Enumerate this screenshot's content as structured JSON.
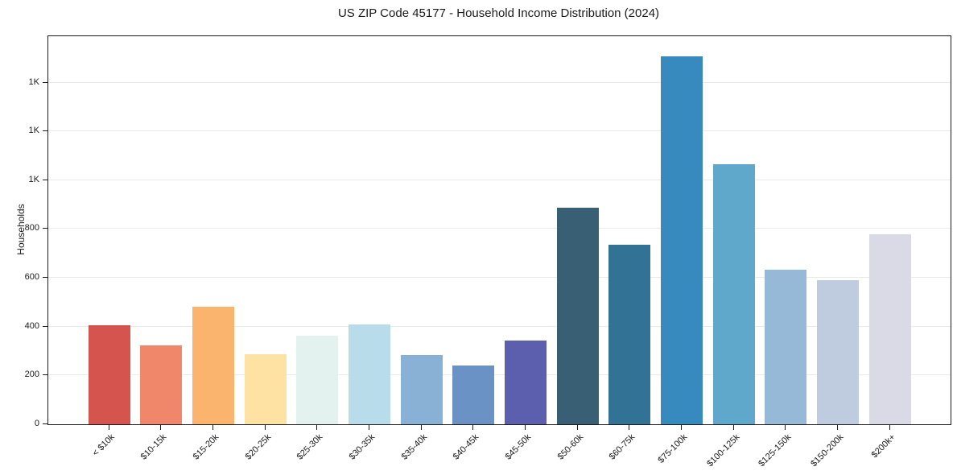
{
  "chart_data": {
    "type": "bar",
    "title": "US ZIP Code 45177 - Household Income Distribution (2024)",
    "xlabel": "",
    "ylabel": "Households",
    "categories": [
      "< $10k",
      "$10-15k",
      "$15-20k",
      "$20-25k",
      "$25-30k",
      "$30-35k",
      "$35-40k",
      "$40-45k",
      "$45-50k",
      "$50-60k",
      "$60-75k",
      "$75-100k",
      "$100-125k",
      "$125-150k",
      "$150-200k",
      "$200k+"
    ],
    "values": [
      405,
      323,
      482,
      287,
      362,
      408,
      284,
      240,
      343,
      888,
      735,
      1508,
      1066,
      632,
      592,
      777
    ],
    "bar_colors": [
      "#d6544e",
      "#f0876a",
      "#fab46e",
      "#fde2a3",
      "#e4f2ef",
      "#b8dcea",
      "#89b1d6",
      "#6b92c4",
      "#5c5fad",
      "#395f74",
      "#327294",
      "#378abd",
      "#5fa7cb",
      "#96b9d8",
      "#bfcce0",
      "#dadae7"
    ],
    "ylim": [
      0,
      1590
    ],
    "yticks": [
      {
        "value": 0,
        "label": "0"
      },
      {
        "value": 200,
        "label": "200"
      },
      {
        "value": 400,
        "label": "400"
      },
      {
        "value": 600,
        "label": "600"
      },
      {
        "value": 800,
        "label": "800"
      },
      {
        "value": 1000,
        "label": "1K"
      },
      {
        "value": 1200,
        "label": "1K"
      },
      {
        "value": 1400,
        "label": "1K"
      }
    ],
    "grid": "horizontal",
    "legend": "none",
    "background": "#ffffff",
    "spine_color": "#1b1b1b",
    "gridline_color": "#e9e9e9"
  }
}
